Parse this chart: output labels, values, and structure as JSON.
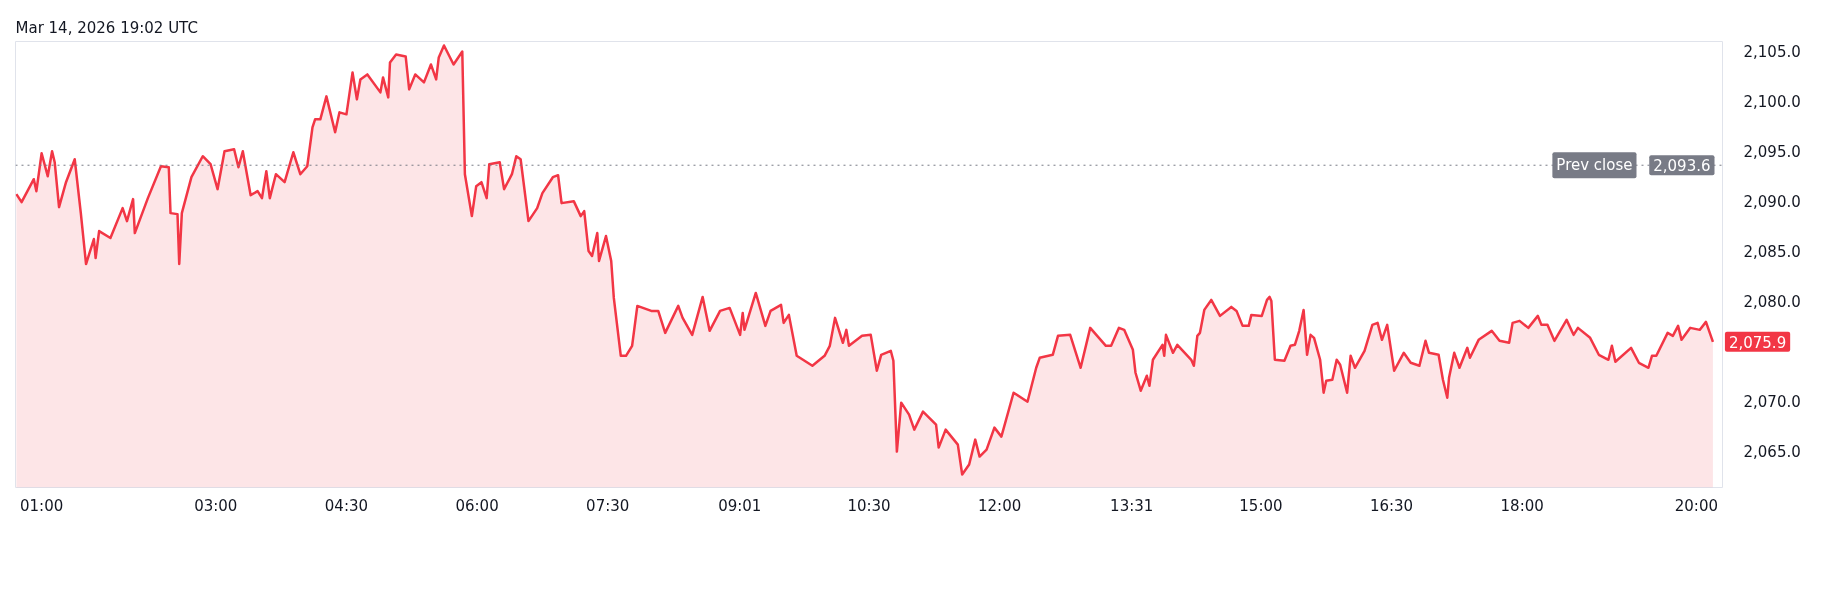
{
  "chart_data": {
    "type": "area",
    "title": "Mar 14, 2026 19:02 UTC",
    "color": "#f23645",
    "x": [
      0.71,
      0.77,
      0.91,
      0.94,
      1.0,
      1.07,
      1.12,
      1.15,
      1.2,
      1.28,
      1.38,
      1.45,
      1.51,
      1.6,
      1.62,
      1.66,
      1.79,
      1.93,
      1.98,
      2.05,
      2.07,
      2.22,
      2.37,
      2.46,
      2.48,
      2.56,
      2.58,
      2.61,
      2.72,
      2.85,
      2.94,
      3.02,
      3.1,
      3.21,
      3.26,
      3.31,
      3.4,
      3.48,
      3.53,
      3.58,
      3.62,
      3.69,
      3.79,
      3.89,
      3.97,
      4.05,
      4.11,
      4.14,
      4.2,
      4.27,
      4.37,
      4.42,
      4.5,
      4.57,
      4.62,
      4.66,
      4.74,
      4.89,
      4.92,
      4.98,
      5.0,
      5.07,
      5.18,
      5.22,
      5.29,
      5.39,
      5.47,
      5.53,
      5.56,
      5.62,
      5.73,
      5.83,
      5.86,
      5.94,
      5.99,
      6.05,
      6.11,
      6.14,
      6.26,
      6.31,
      6.4,
      6.45,
      6.5,
      6.59,
      6.69,
      6.75,
      6.87,
      6.93,
      6.97,
      7.11,
      7.19,
      7.23,
      7.28,
      7.32,
      7.38,
      7.4,
      7.48,
      7.54,
      7.57,
      7.65,
      7.71,
      7.78,
      7.84,
      8.0,
      8.08,
      8.16,
      8.31,
      8.36,
      8.47,
      8.59,
      8.67,
      8.79,
      8.9,
      9.02,
      9.05,
      9.07,
      9.2,
      9.31,
      9.37,
      9.49,
      9.52,
      9.58,
      9.67,
      9.85,
      9.99,
      10.05,
      10.11,
      10.2,
      10.24,
      10.27,
      10.42,
      10.52,
      10.59,
      10.64,
      10.75,
      10.78,
      10.82,
      10.87,
      10.96,
      11.02,
      11.12,
      11.27,
      11.3,
      11.38,
      11.52,
      11.57,
      11.65,
      11.72,
      11.77,
      11.85,
      11.94,
      12.02,
      12.16,
      12.32,
      12.42,
      12.46,
      12.61,
      12.67,
      12.81,
      12.93,
      13.04,
      13.22,
      13.28,
      13.37,
      13.43,
      13.53,
      13.56,
      13.62,
      13.69,
      13.72,
      13.76,
      13.87,
      13.89,
      13.91,
      13.99,
      14.04,
      14.2,
      14.23,
      14.27,
      14.3,
      14.35,
      14.43,
      14.53,
      14.66,
      14.72,
      14.79,
      14.86,
      14.89,
      15.01,
      15.07,
      15.1,
      15.12,
      15.16,
      15.27,
      15.34,
      15.39,
      15.44,
      15.49,
      15.53,
      15.57,
      15.61,
      15.68,
      15.72,
      15.75,
      15.82,
      15.87,
      15.91,
      15.99,
      16.03,
      16.08,
      16.19,
      16.28,
      16.34,
      16.39,
      16.45,
      16.53,
      16.64,
      16.72,
      16.82,
      16.89,
      16.93,
      17.04,
      17.09,
      17.14,
      17.16,
      17.22,
      17.28,
      17.37,
      17.4,
      17.5,
      17.65,
      17.74,
      17.85,
      17.89,
      17.97,
      18.07,
      18.18,
      18.22,
      18.29,
      18.37,
      18.51,
      18.59,
      18.64,
      18.78,
      18.88,
      18.99,
      19.03,
      19.07,
      19.25,
      19.34,
      19.45,
      19.49,
      19.54,
      19.67,
      19.73,
      19.79,
      19.83,
      19.93,
      20.04,
      20.11,
      20.19
    ],
    "values": [
      2090.7,
      2089.9,
      2092.2,
      2091.0,
      2094.8,
      2092.5,
      2095.0,
      2093.9,
      2089.4,
      2091.9,
      2094.2,
      2088.8,
      2083.7,
      2086.2,
      2084.3,
      2087.0,
      2086.3,
      2089.3,
      2088.0,
      2090.2,
      2086.8,
      2090.3,
      2093.5,
      2093.4,
      2088.8,
      2088.7,
      2083.7,
      2088.8,
      2092.4,
      2094.5,
      2093.7,
      2091.2,
      2095.0,
      2095.2,
      2093.4,
      2095.0,
      2090.6,
      2091.0,
      2090.3,
      2093.0,
      2090.3,
      2092.7,
      2091.9,
      2094.9,
      2092.7,
      2093.5,
      2097.4,
      2098.2,
      2098.2,
      2100.5,
      2096.9,
      2098.9,
      2098.7,
      2102.9,
      2100.2,
      2102.2,
      2102.7,
      2100.9,
      2102.4,
      2100.4,
      2103.9,
      2104.7,
      2104.5,
      2101.2,
      2102.7,
      2101.9,
      2103.7,
      2102.2,
      2104.4,
      2105.6,
      2103.7,
      2105.0,
      2092.7,
      2088.5,
      2091.5,
      2091.9,
      2090.3,
      2093.7,
      2093.9,
      2091.2,
      2092.7,
      2094.5,
      2094.2,
      2088.0,
      2089.3,
      2090.8,
      2092.4,
      2092.6,
      2089.8,
      2090.0,
      2088.5,
      2089.0,
      2085.0,
      2084.5,
      2086.8,
      2084.0,
      2086.5,
      2084.0,
      2080.3,
      2074.5,
      2074.5,
      2075.5,
      2079.5,
      2079.0,
      2079.0,
      2076.8,
      2079.5,
      2078.3,
      2076.6,
      2080.4,
      2077.0,
      2079.0,
      2079.3,
      2076.6,
      2078.8,
      2077.1,
      2080.8,
      2077.5,
      2079.0,
      2079.6,
      2077.8,
      2078.6,
      2074.5,
      2073.5,
      2074.5,
      2075.5,
      2078.3,
      2075.8,
      2077.1,
      2075.5,
      2076.5,
      2076.6,
      2073.0,
      2074.6,
      2075.0,
      2074.0,
      2064.9,
      2069.8,
      2068.6,
      2067.1,
      2068.9,
      2067.6,
      2065.3,
      2067.1,
      2065.6,
      2062.6,
      2063.6,
      2066.1,
      2064.4,
      2065.1,
      2067.3,
      2066.4,
      2070.8,
      2069.9,
      2073.3,
      2074.3,
      2074.6,
      2076.5,
      2076.6,
      2073.3,
      2077.3,
      2075.5,
      2075.5,
      2077.3,
      2077.1,
      2075.1,
      2072.8,
      2071.0,
      2072.5,
      2071.5,
      2074.1,
      2075.6,
      2074.5,
      2076.6,
      2074.8,
      2075.6,
      2074.1,
      2073.5,
      2076.5,
      2076.8,
      2079.1,
      2080.1,
      2078.5,
      2079.4,
      2079.0,
      2077.5,
      2077.5,
      2078.6,
      2078.5,
      2080.1,
      2080.4,
      2080.0,
      2074.1,
      2074.0,
      2075.5,
      2075.6,
      2077.0,
      2079.1,
      2074.6,
      2076.6,
      2076.3,
      2074.1,
      2070.8,
      2072.0,
      2072.1,
      2074.1,
      2073.6,
      2070.8,
      2074.5,
      2073.3,
      2075.0,
      2077.6,
      2077.8,
      2076.1,
      2077.6,
      2073.0,
      2074.8,
      2073.8,
      2073.5,
      2076.0,
      2074.8,
      2074.6,
      2072.1,
      2070.3,
      2072.3,
      2074.8,
      2073.3,
      2075.3,
      2074.3,
      2076.1,
      2077.0,
      2076.0,
      2075.8,
      2077.8,
      2078.0,
      2077.3,
      2078.5,
      2077.6,
      2077.6,
      2076.0,
      2078.1,
      2076.6,
      2077.3,
      2076.3,
      2074.6,
      2074.1,
      2075.5,
      2073.9,
      2075.3,
      2073.8,
      2073.3,
      2074.5,
      2074.5,
      2076.8,
      2076.5,
      2077.5,
      2076.1,
      2077.3,
      2077.1,
      2077.9,
      2075.9
    ],
    "xlim": [
      0.7,
      20.3
    ],
    "ylim": [
      2061.3,
      2106.0
    ],
    "xticks": [
      {
        "value": 1,
        "label": "01:00"
      },
      {
        "value": 3,
        "label": "03:00"
      },
      {
        "value": 4.5,
        "label": "04:30"
      },
      {
        "value": 6,
        "label": "06:00"
      },
      {
        "value": 7.5,
        "label": "07:30"
      },
      {
        "value": 9.0167,
        "label": "09:01"
      },
      {
        "value": 10.5,
        "label": "10:30"
      },
      {
        "value": 12,
        "label": "12:00"
      },
      {
        "value": 13.5167,
        "label": "13:31"
      },
      {
        "value": 15,
        "label": "15:00"
      },
      {
        "value": 16.5,
        "label": "16:30"
      },
      {
        "value": 18,
        "label": "18:00"
      },
      {
        "value": 20,
        "label": "20:00"
      }
    ],
    "yticks": [
      {
        "value": 2065,
        "label": "2,065.0"
      },
      {
        "value": 2070,
        "label": "2,070.0"
      },
      {
        "value": 2080,
        "label": "2,080.0"
      },
      {
        "value": 2085,
        "label": "2,085.0"
      },
      {
        "value": 2090,
        "label": "2,090.0"
      },
      {
        "value": 2095,
        "label": "2,095.0"
      },
      {
        "value": 2100,
        "label": "2,100.0"
      },
      {
        "value": 2105,
        "label": "2,105.0"
      }
    ],
    "ref_lines": [
      {
        "axis": "y",
        "value": 2093.6,
        "label": "Prev close",
        "color": "#787b86",
        "line_style": "dotted"
      }
    ],
    "annotations": [
      {
        "text": "2,093.6",
        "x": 20.3,
        "y": 2093.6
      },
      {
        "text": "2,075.9",
        "x": 20.19,
        "y": 2075.9
      }
    ]
  }
}
